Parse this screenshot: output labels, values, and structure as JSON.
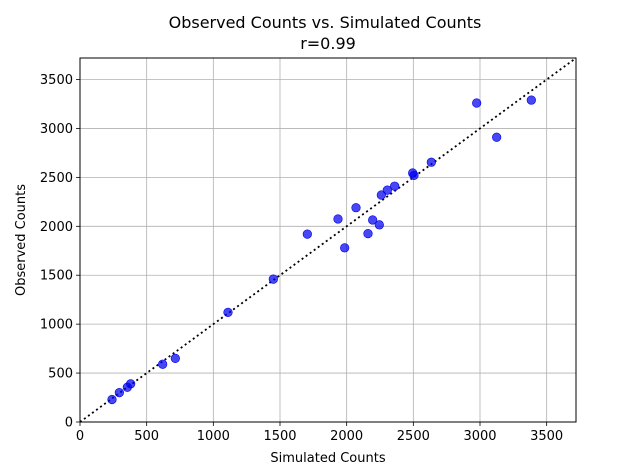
{
  "chart_data": {
    "type": "scatter",
    "title": "Observed Counts vs. Simulated Counts",
    "subtitle": "r=0.99",
    "xlabel": "Simulated Counts",
    "ylabel": "Observed Counts",
    "xlim": [
      0,
      3720
    ],
    "ylim": [
      0,
      3720
    ],
    "xticks": [
      0,
      500,
      1000,
      1500,
      2000,
      2500,
      3000,
      3500
    ],
    "yticks": [
      0,
      500,
      1000,
      1500,
      2000,
      2500,
      3000,
      3500
    ],
    "grid": true,
    "identity_line": true,
    "point_color": "#0000ee",
    "line_color": "#000000",
    "points": [
      {
        "x": 240,
        "y": 230
      },
      {
        "x": 295,
        "y": 300
      },
      {
        "x": 355,
        "y": 355
      },
      {
        "x": 380,
        "y": 390
      },
      {
        "x": 620,
        "y": 590
      },
      {
        "x": 715,
        "y": 650
      },
      {
        "x": 1110,
        "y": 1120
      },
      {
        "x": 1450,
        "y": 1460
      },
      {
        "x": 1705,
        "y": 1920
      },
      {
        "x": 1935,
        "y": 2075
      },
      {
        "x": 1985,
        "y": 1780
      },
      {
        "x": 2070,
        "y": 2190
      },
      {
        "x": 2160,
        "y": 1925
      },
      {
        "x": 2195,
        "y": 2065
      },
      {
        "x": 2245,
        "y": 2015
      },
      {
        "x": 2260,
        "y": 2320
      },
      {
        "x": 2305,
        "y": 2370
      },
      {
        "x": 2360,
        "y": 2410
      },
      {
        "x": 2495,
        "y": 2545
      },
      {
        "x": 2505,
        "y": 2520
      },
      {
        "x": 2635,
        "y": 2655
      },
      {
        "x": 2975,
        "y": 3260
      },
      {
        "x": 3125,
        "y": 2910
      },
      {
        "x": 3385,
        "y": 3290
      }
    ]
  }
}
